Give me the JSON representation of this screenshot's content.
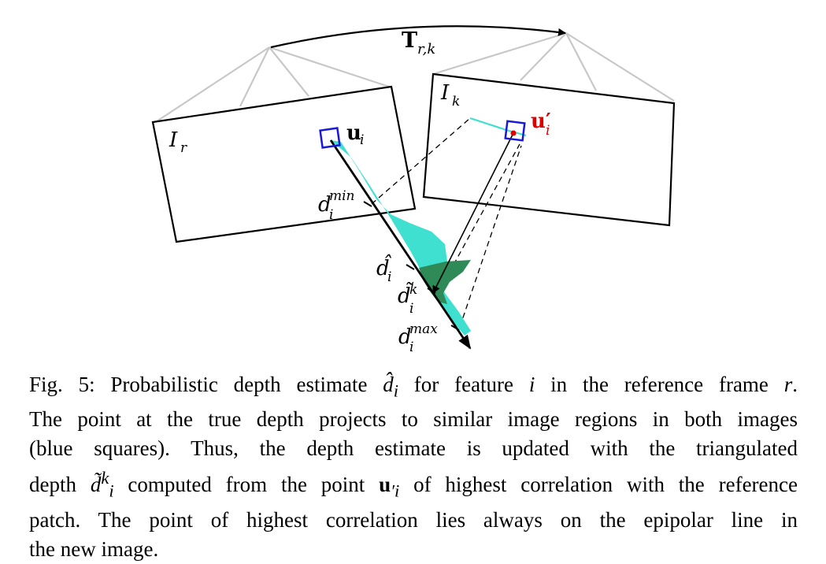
{
  "figure": {
    "transform_label": "T",
    "transform_sub": "r,k",
    "ref_image_label": "I",
    "ref_image_sub": "r",
    "new_image_label": "I",
    "new_image_sub": "k",
    "feature_label": "u",
    "feature_sub": "i",
    "match_label": "u′",
    "match_sub": "i",
    "dmin_label": "d",
    "dmin_sub": "i",
    "dmin_sup": "min",
    "dhat_label": "d̂",
    "dhat_sub": "i",
    "dtilde_label": "d̃",
    "dtilde_sub": "i",
    "dtilde_sup": "k",
    "dmax_label": "d",
    "dmax_sub": "i",
    "dmax_sup": "max",
    "colors": {
      "patch_square": "#1a1ad6",
      "match_point": "#e00000",
      "match_label": "#e00000",
      "depth_distribution": "#40e0d0",
      "depth_update": "#2e8b57",
      "frustum_lines": "#c8c8c8"
    }
  },
  "caption": {
    "fig_number": "Fig. 5:",
    "line1_a": " Probabilistic depth estimate ",
    "line1_sym": "d̂",
    "line1_sub": "i",
    "line1_b": " for feature ",
    "line1_i": "i",
    "line1_c": " in the reference frame ",
    "line1_r": "r",
    "line1_d": ".",
    "line2": "The point at the true depth projects to similar image regions in both images",
    "line3": "(blue squares). Thus, the depth estimate is updated with the triangulated",
    "line4_a": "depth ",
    "line4_sym": "d̃",
    "line4_sup": "k",
    "line4_sub": "i",
    "line4_b": " computed from the point ",
    "line4_u": "u",
    "line4_usub": "′i",
    "line4_c": " of highest correlation with the reference",
    "line5": "patch. The point of highest correlation lies always on the epipolar line in",
    "line6": "the new image."
  }
}
